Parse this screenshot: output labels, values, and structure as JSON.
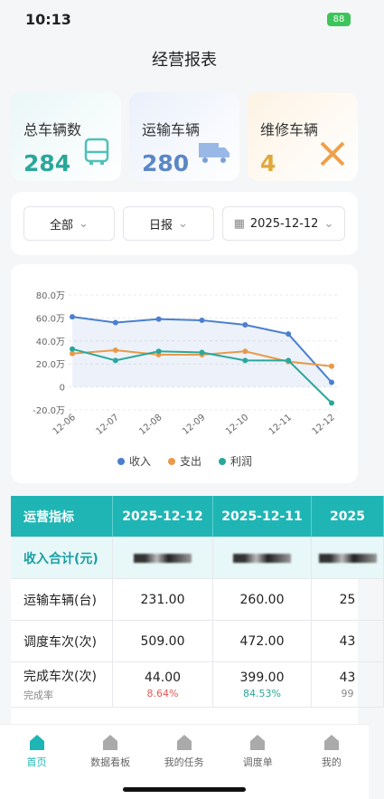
{
  "status": {
    "time": "10:13",
    "battery": "88"
  },
  "header": {
    "title": "经营报表"
  },
  "stats": [
    {
      "label": "总车辆数",
      "value": "284"
    },
    {
      "label": "运输车辆",
      "value": "280"
    },
    {
      "label": "维修车辆",
      "value": "4"
    }
  ],
  "filters": [
    "全部",
    "日报",
    "2025-12-12"
  ],
  "chart_data": {
    "type": "line",
    "categories": [
      "12-06",
      "12-07",
      "12-08",
      "12-09",
      "12-10",
      "12-11",
      "12-12"
    ],
    "series": [
      {
        "name": "收入",
        "color": "#4a7fd0",
        "values": [
          61,
          56,
          59,
          58,
          54,
          46,
          4
        ]
      },
      {
        "name": "支出",
        "color": "#e89a4a",
        "values": [
          29,
          32,
          28,
          28,
          31,
          22,
          18
        ]
      },
      {
        "name": "利润",
        "color": "#2aa79b",
        "values": [
          33,
          23,
          31,
          30,
          23,
          23,
          -14
        ]
      }
    ],
    "ylim": [
      -20,
      80
    ],
    "yticks": [
      {
        "value": -20,
        "label": "-20.0万"
      },
      0,
      {
        "value": 20,
        "label": "20.0万"
      },
      {
        "value": 40,
        "label": "40.0万"
      },
      {
        "value": 60,
        "label": "60.0万"
      },
      {
        "value": 80,
        "label": "80.0万"
      }
    ],
    "grid": true,
    "legend": "bottom"
  },
  "table": {
    "header": [
      "运营指标",
      "2025-12-12",
      "2025-12-11",
      "2025"
    ],
    "income_label": "收入合计(元)",
    "rows": [
      {
        "label": "运输车辆(台)",
        "cells": [
          {
            "value": "231.00"
          },
          {
            "value": "260.00"
          },
          {
            "value": "25"
          }
        ]
      },
      {
        "label": "调度车次(次)",
        "cells": [
          {
            "value": "509.00"
          },
          {
            "value": "472.00"
          },
          {
            "value": "43"
          }
        ]
      },
      {
        "label": "完成车次(次)",
        "sub": "完成率",
        "cells": [
          {
            "value": "44.00",
            "sub": "8.64%"
          },
          {
            "value": "399.00",
            "sub": "84.53%"
          },
          {
            "value": "43",
            "sub": "99"
          }
        ]
      }
    ]
  },
  "tabs": [
    "首页",
    "数据看板",
    "我的任务",
    "调度单",
    "我的"
  ]
}
